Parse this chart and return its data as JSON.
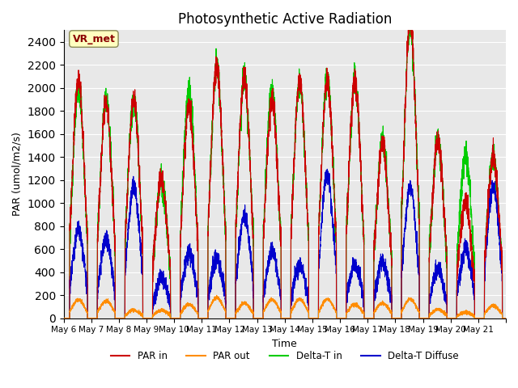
{
  "title": "Photosynthetic Active Radiation",
  "xlabel": "Time",
  "ylabel": "PAR (umol/m2/s)",
  "ylim": [
    0,
    2500
  ],
  "yticks": [
    0,
    200,
    400,
    600,
    800,
    1000,
    1200,
    1400,
    1600,
    1800,
    2000,
    2200,
    2400
  ],
  "xtick_positions": [
    0,
    1,
    2,
    3,
    4,
    5,
    6,
    7,
    8,
    9,
    10,
    11,
    12,
    13,
    14,
    15,
    16
  ],
  "xtick_labels": [
    "May 6",
    "May 7",
    "May 8",
    "May 9",
    "May 10",
    "May 11",
    "May 12",
    "May 13",
    "May 14",
    "May 15",
    "May 16",
    "May 17",
    "May 18",
    "May 19",
    "May 20",
    "May 21",
    ""
  ],
  "annotation_text": "VR_met",
  "annotation_color": "#8B0000",
  "annotation_bg": "#FFFFC0",
  "bg_color": "#E8E8E8",
  "colors": {
    "PAR_in": "#CC0000",
    "PAR_out": "#FF8C00",
    "Delta_T_in": "#00CC00",
    "Delta_T_Diffuse": "#0000CC"
  },
  "legend_labels": [
    "PAR in",
    "PAR out",
    "Delta-T in",
    "Delta-T Diffuse"
  ],
  "n_days": 16,
  "day_peaks": [
    2060,
    1870,
    1900,
    1210,
    1850,
    2200,
    2100,
    1900,
    2060,
    2070,
    2060,
    1520,
    2560,
    1540,
    1010,
    1410
  ],
  "par_out_peaks": [
    160,
    150,
    70,
    70,
    120,
    180,
    130,
    160,
    165,
    165,
    120,
    130,
    165,
    75,
    50,
    110
  ],
  "delta_t_peaks": [
    2000,
    1900,
    1900,
    1200,
    2000,
    2200,
    2100,
    2000,
    2050,
    2100,
    2050,
    1550,
    2550,
    1550,
    1400,
    1400
  ],
  "diffuse_peaks": [
    760,
    680,
    1140,
    360,
    570,
    520,
    890,
    580,
    460,
    1260,
    470,
    480,
    1140,
    420,
    600,
    1140
  ]
}
